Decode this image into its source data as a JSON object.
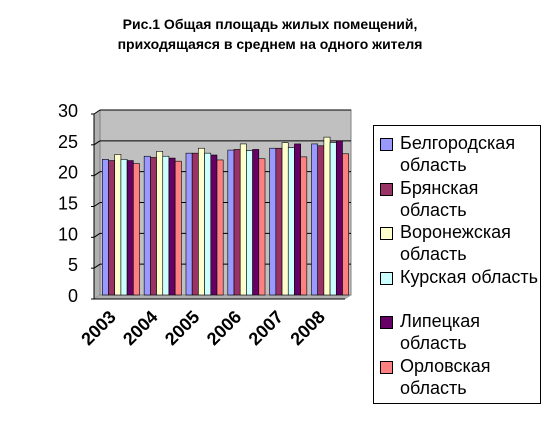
{
  "title_lines": [
    "Рис.1 Общая площадь жилых помещений,",
    "приходящаяся в среднем на одного жителя"
  ],
  "chart_data": {
    "type": "bar",
    "title": "Рис.1 Общая площадь жилых помещений, приходящаяся в среднем на одного жителя",
    "categories": [
      "2003",
      "2004",
      "2005",
      "2006",
      "2007",
      "2008"
    ],
    "yticks": [
      "0",
      "5",
      "10",
      "15",
      "20",
      "25",
      "30"
    ],
    "ylim": [
      0,
      30
    ],
    "grid": true,
    "legend_position": "right",
    "series": [
      {
        "name": "Белгородская область",
        "color": "#9999ff",
        "values": [
          22.0,
          22.5,
          23.0,
          23.5,
          23.8,
          24.5
        ]
      },
      {
        "name": "Брянская область",
        "color": "#993366",
        "values": [
          21.8,
          22.3,
          23.0,
          23.6,
          23.8,
          24.2
        ]
      },
      {
        "name": "Воронежская область",
        "color": "#ffffcc",
        "values": [
          22.8,
          23.3,
          23.8,
          24.5,
          24.7,
          25.6
        ]
      },
      {
        "name": "Курская область",
        "color": "#ccffff",
        "values": [
          22.0,
          22.5,
          23.0,
          23.4,
          23.9,
          24.7
        ]
      },
      {
        "name": "Липецкая область",
        "color": "#660066",
        "values": [
          21.8,
          22.2,
          22.7,
          23.6,
          24.5,
          25.0
        ]
      },
      {
        "name": "Орловская область",
        "color": "#ff8080",
        "values": [
          21.3,
          21.7,
          21.9,
          22.1,
          22.4,
          22.9
        ]
      }
    ]
  }
}
